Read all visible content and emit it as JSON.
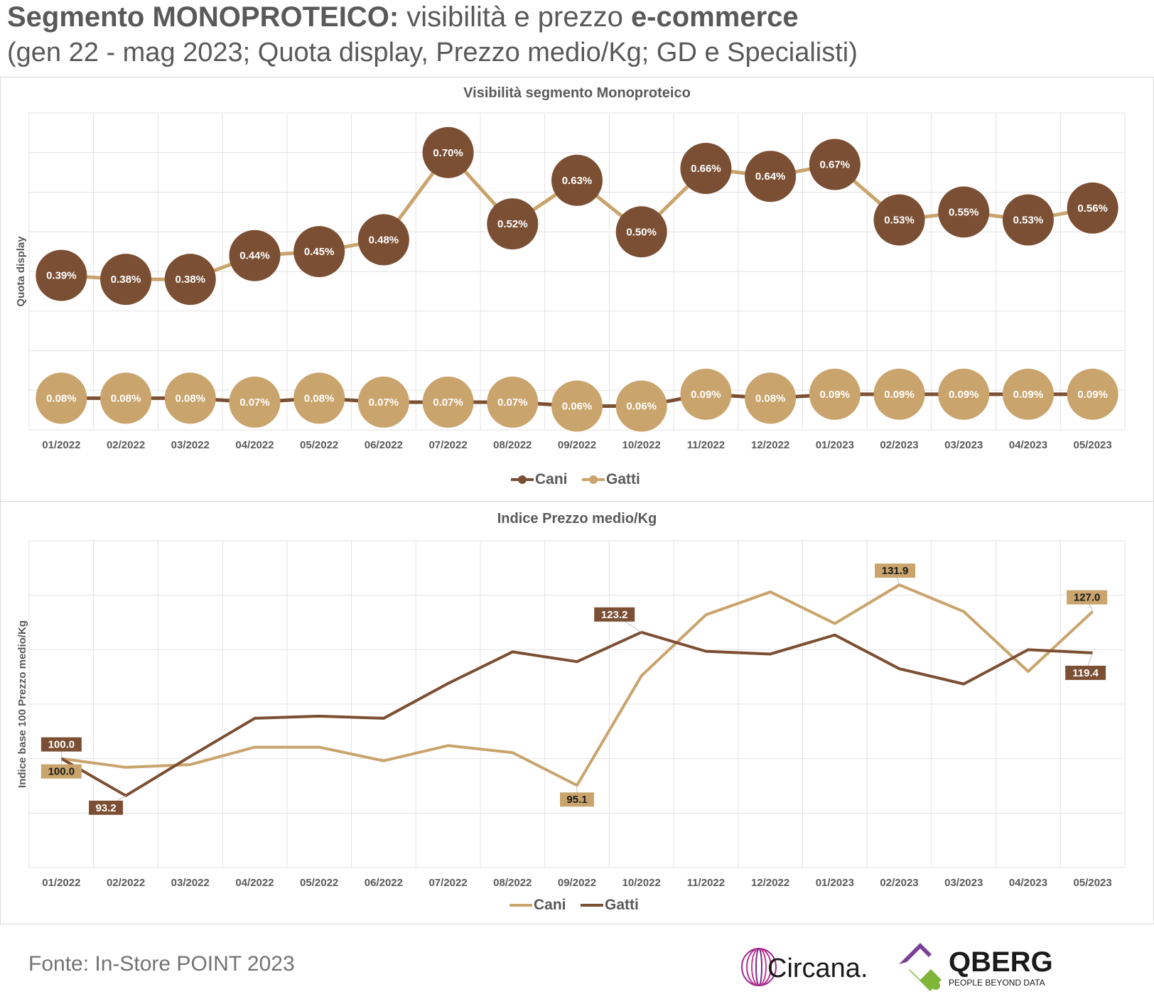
{
  "title": {
    "bold_part1": "Segmento MONOPROTEICO:",
    "normal_part": " visibilità e prezzo ",
    "bold_part2": "e-commerce",
    "subtitle": "(gen 22 - mag 2023; Quota display, Prezzo medio/Kg; GD e Specialisti)"
  },
  "source": "Fonte: In-Store POINT 2023",
  "logos": {
    "circana": "Circana.",
    "qberg": "QBERG",
    "qberg_tagline": "PEOPLE BEYOND DATA"
  },
  "colors": {
    "cani_dark": "#7b4f33",
    "gatti_light": "#c9a46c",
    "line_light": "#c9a46c",
    "line_dark": "#7b4f33",
    "grid": "#e3e3e3",
    "axis_text": "#595959"
  },
  "chart_data": [
    {
      "type": "line",
      "title": "Visibilità segmento Monoproteico",
      "ylabel": "Quota display",
      "xlabel": "",
      "categories": [
        "01/2022",
        "02/2022",
        "03/2022",
        "04/2022",
        "05/2022",
        "06/2022",
        "07/2022",
        "08/2022",
        "09/2022",
        "10/2022",
        "11/2022",
        "12/2022",
        "01/2023",
        "02/2023",
        "03/2023",
        "04/2023",
        "05/2023"
      ],
      "series": [
        {
          "name": "Cani",
          "values": [
            0.39,
            0.38,
            0.38,
            0.44,
            0.45,
            0.48,
            0.7,
            0.52,
            0.63,
            0.5,
            0.66,
            0.64,
            0.67,
            0.53,
            0.55,
            0.53,
            0.56
          ],
          "labels": [
            "0.39%",
            "0.38%",
            "0.38%",
            "0.44%",
            "0.45%",
            "0.48%",
            "0.70%",
            "0.52%",
            "0.63%",
            "0.50%",
            "0.66%",
            "0.64%",
            "0.67%",
            "0.53%",
            "0.55%",
            "0.53%",
            "0.56%"
          ]
        },
        {
          "name": "Gatti",
          "values": [
            0.08,
            0.08,
            0.08,
            0.07,
            0.08,
            0.07,
            0.07,
            0.07,
            0.06,
            0.06,
            0.09,
            0.08,
            0.09,
            0.09,
            0.09,
            0.09,
            0.09
          ],
          "labels": [
            "0.08%",
            "0.08%",
            "0.08%",
            "0.07%",
            "0.08%",
            "0.07%",
            "0.07%",
            "0.07%",
            "0.06%",
            "0.06%",
            "0.09%",
            "0.08%",
            "0.09%",
            "0.09%",
            "0.09%",
            "0.09%",
            "0.09%"
          ]
        }
      ],
      "ylim": [
        0.0,
        0.8
      ],
      "grid": true,
      "legend": "bottom-center"
    },
    {
      "type": "line",
      "title": "Indice Prezzo medio/Kg",
      "ylabel": "Indice base 100 Prezzo medio/Kg",
      "xlabel": "",
      "categories": [
        "01/2022",
        "02/2022",
        "03/2022",
        "04/2022",
        "05/2022",
        "06/2022",
        "07/2022",
        "08/2022",
        "09/2022",
        "10/2022",
        "11/2022",
        "12/2022",
        "01/2023",
        "02/2023",
        "03/2023",
        "04/2023",
        "05/2023"
      ],
      "series": [
        {
          "name": "Cani",
          "values": [
            100.0,
            98.4,
            98.9,
            102.1,
            102.1,
            99.6,
            102.4,
            101.1,
            95.1,
            115.2,
            126.4,
            130.6,
            124.8,
            131.9,
            127.0,
            116.0,
            127.0
          ]
        },
        {
          "name": "Gatti",
          "values": [
            100.0,
            93.2,
            100.4,
            107.4,
            107.8,
            107.4,
            113.8,
            119.6,
            117.8,
            123.2,
            119.7,
            119.2,
            122.7,
            116.5,
            113.7,
            120.0,
            119.4
          ]
        }
      ],
      "data_labels": [
        {
          "series": "Gatti",
          "index": 0,
          "text": "100.0"
        },
        {
          "series": "Cani",
          "index": 0,
          "text": "100.0"
        },
        {
          "series": "Gatti",
          "index": 1,
          "text": "93.2"
        },
        {
          "series": "Cani",
          "index": 8,
          "text": "95.1"
        },
        {
          "series": "Gatti",
          "index": 9,
          "text": "123.2"
        },
        {
          "series": "Cani",
          "index": 13,
          "text": "131.9"
        },
        {
          "series": "Cani",
          "index": 16,
          "text": "127.0"
        },
        {
          "series": "Gatti",
          "index": 16,
          "text": "119.4"
        }
      ],
      "ylim": [
        80,
        140
      ],
      "grid": true,
      "legend": "bottom-center"
    }
  ]
}
